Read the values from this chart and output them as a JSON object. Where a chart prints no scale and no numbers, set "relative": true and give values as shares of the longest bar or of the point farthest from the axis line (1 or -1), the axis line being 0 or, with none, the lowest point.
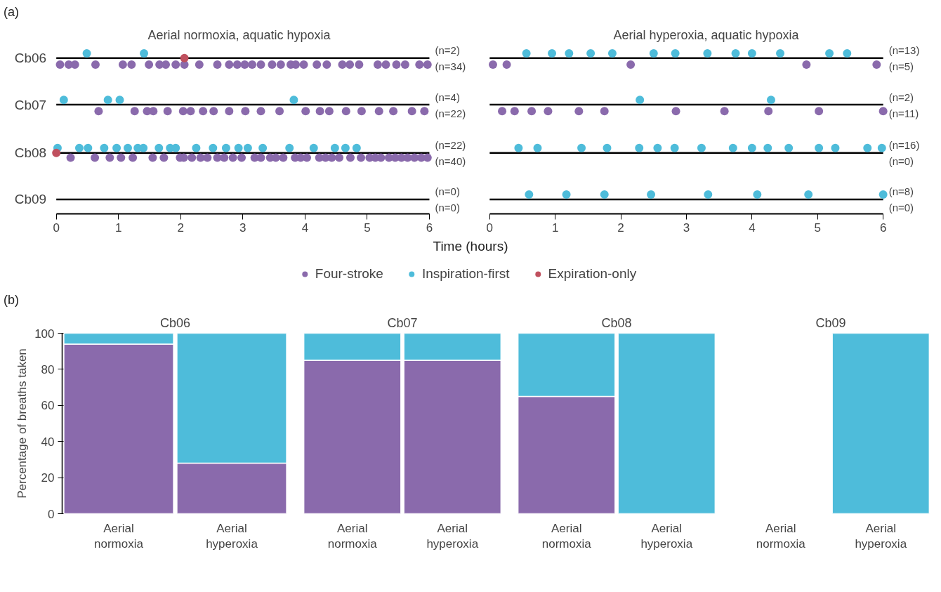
{
  "chart_data": [
    {
      "type": "scatter",
      "relative": true,
      "title": "Aerial normoxia, aquatic hypoxia",
      "xlabel": "Time (hours)",
      "xlim": [
        0,
        6
      ],
      "xticks": [
        0,
        1,
        2,
        3,
        4,
        5,
        6
      ],
      "grid": false,
      "marker": "circle",
      "legend": "bottom",
      "ref_lines": [
        {
          "axis": "y",
          "value": 0.97,
          "label": "Cb06"
        },
        {
          "axis": "y",
          "value": 0.68,
          "label": "Cb07"
        },
        {
          "axis": "y",
          "value": 0.38,
          "label": "Cb08"
        },
        {
          "axis": "y",
          "value": 0.09,
          "label": "Cb09"
        }
      ],
      "annotations": [
        "(a)",
        "(n=2)",
        "(n=34)",
        "(n=4)",
        "(n=22)",
        "(n=22)",
        "(n=40)",
        "(n=0)",
        "(n=0)"
      ],
      "series": [
        {
          "name": "Four-stroke",
          "color": "#8a6aac",
          "x": [
            0.06,
            0.2,
            0.3,
            0.63,
            1.07,
            1.21,
            1.49,
            1.66,
            1.76,
            1.92,
            2.06,
            2.3,
            2.59,
            2.78,
            2.91,
            3.03,
            3.15,
            3.29,
            3.47,
            3.61,
            3.77,
            3.85,
            3.98,
            4.19,
            4.35,
            4.6,
            4.72,
            4.87,
            5.17,
            5.3,
            5.47,
            5.61,
            5.84,
            5.97,
            0.68,
            1.26,
            1.46,
            1.56,
            1.79,
            2.04,
            2.16,
            2.36,
            2.53,
            2.78,
            3.04,
            3.29,
            3.59,
            4.01,
            4.24,
            4.39,
            4.66,
            4.91,
            5.19,
            5.42,
            5.72,
            5.92,
            0.23,
            0.62,
            0.86,
            1.04,
            1.23,
            1.55,
            1.73,
            1.99,
            2.05,
            2.18,
            2.32,
            2.43,
            2.59,
            2.7,
            2.84,
            2.98,
            3.19,
            3.29,
            3.44,
            3.53,
            3.65,
            3.84,
            3.93,
            4.03,
            4.23,
            4.33,
            4.43,
            4.55,
            4.73,
            4.9,
            5.04,
            5.13,
            5.22,
            5.35,
            5.45,
            5.55,
            5.65,
            5.76,
            5.87,
            5.97
          ],
          "values": [
            0.93,
            0.93,
            0.93,
            0.93,
            0.93,
            0.93,
            0.93,
            0.93,
            0.93,
            0.93,
            0.93,
            0.93,
            0.93,
            0.93,
            0.93,
            0.93,
            0.93,
            0.93,
            0.93,
            0.93,
            0.93,
            0.93,
            0.93,
            0.93,
            0.93,
            0.93,
            0.93,
            0.93,
            0.93,
            0.93,
            0.93,
            0.93,
            0.93,
            0.93,
            0.64,
            0.64,
            0.64,
            0.64,
            0.64,
            0.64,
            0.64,
            0.64,
            0.64,
            0.64,
            0.64,
            0.64,
            0.64,
            0.64,
            0.64,
            0.64,
            0.64,
            0.64,
            0.64,
            0.64,
            0.64,
            0.64,
            0.35,
            0.35,
            0.35,
            0.35,
            0.35,
            0.35,
            0.35,
            0.35,
            0.35,
            0.35,
            0.35,
            0.35,
            0.35,
            0.35,
            0.35,
            0.35,
            0.35,
            0.35,
            0.35,
            0.35,
            0.35,
            0.35,
            0.35,
            0.35,
            0.35,
            0.35,
            0.35,
            0.35,
            0.35,
            0.35,
            0.35,
            0.35,
            0.35,
            0.35,
            0.35,
            0.35,
            0.35,
            0.35,
            0.35,
            0.35
          ]
        },
        {
          "name": "Inspiration-first",
          "color": "#4ebcda",
          "x": [
            0.49,
            1.41,
            0.12,
            0.83,
            1.02,
            3.82,
            0.02,
            0.37,
            0.51,
            0.77,
            0.97,
            1.15,
            1.31,
            1.4,
            1.65,
            1.83,
            1.92,
            2.25,
            2.52,
            2.73,
            2.93,
            3.08,
            3.32,
            3.75,
            4.14,
            4.48,
            4.65,
            4.83
          ],
          "values": [
            1,
            1,
            0.71,
            0.71,
            0.71,
            0.71,
            0.41,
            0.41,
            0.41,
            0.41,
            0.41,
            0.41,
            0.41,
            0.41,
            0.41,
            0.41,
            0.41,
            0.41,
            0.41,
            0.41,
            0.41,
            0.41,
            0.41,
            0.41,
            0.41,
            0.41,
            0.41,
            0.41
          ]
        },
        {
          "name": "Expiration-only",
          "color": "#c0505e",
          "x": [
            2.06,
            0
          ],
          "values": [
            0.97,
            0.38
          ]
        }
      ]
    },
    {
      "type": "scatter",
      "relative": true,
      "title": "Aerial hyperoxia, aquatic hypoxia",
      "xlim": [
        0,
        6
      ],
      "xticks": [
        0,
        1,
        2,
        3,
        4,
        5,
        6
      ],
      "grid": false,
      "marker": "circle",
      "ref_lines": [
        {
          "axis": "y",
          "value": 0.97
        },
        {
          "axis": "y",
          "value": 0.68
        },
        {
          "axis": "y",
          "value": 0.38
        },
        {
          "axis": "y",
          "value": 0.09
        }
      ],
      "annotations": [
        "(n=13)",
        "(n=5)",
        "(n=2)",
        "(n=11)",
        "(n=16)",
        "(n=0)",
        "(n=8)",
        "(n=0)"
      ],
      "series": [
        {
          "color": "#8a6aac",
          "x": [
            0.05,
            0.26,
            2.15,
            4.83,
            5.9,
            0.19,
            0.38,
            0.64,
            0.89,
            1.36,
            1.75,
            2.84,
            3.58,
            4.25,
            5.02,
            6.0
          ],
          "values": [
            0.93,
            0.93,
            0.93,
            0.93,
            0.93,
            0.64,
            0.64,
            0.64,
            0.64,
            0.64,
            0.64,
            0.64,
            0.64,
            0.64,
            0.64,
            0.64
          ]
        },
        {
          "color": "#4ebcda",
          "x": [
            0.56,
            0.95,
            1.21,
            1.54,
            1.87,
            2.5,
            2.83,
            3.32,
            3.75,
            4.0,
            4.43,
            5.18,
            5.45,
            2.29,
            4.29,
            0.44,
            0.73,
            1.4,
            1.79,
            2.28,
            2.56,
            2.82,
            3.23,
            3.71,
            4.0,
            4.24,
            4.56,
            5.02,
            5.27,
            5.76,
            5.98,
            0.6,
            1.17,
            1.75,
            2.46,
            3.33,
            4.08,
            4.86,
            6.0
          ],
          "values": [
            1,
            1,
            1,
            1,
            1,
            1,
            1,
            1,
            1,
            1,
            1,
            1,
            1,
            0.71,
            0.71,
            0.41,
            0.41,
            0.41,
            0.41,
            0.41,
            0.41,
            0.41,
            0.41,
            0.41,
            0.41,
            0.41,
            0.41,
            0.41,
            0.41,
            0.41,
            0.41,
            0.12,
            0.12,
            0.12,
            0.12,
            0.12,
            0.12,
            0.12,
            0.12
          ]
        }
      ]
    },
    {
      "type": "bar",
      "title": "Cb06",
      "ylabel": "Percentage of breaths taken",
      "categories": [
        "Aerial normoxia",
        "Aerial hyperoxia"
      ],
      "stacked": true,
      "ylim": [
        0,
        100
      ],
      "yticks": [
        0,
        20,
        40,
        60,
        80,
        100
      ],
      "grid": false,
      "annotations": [
        "(b)"
      ],
      "series": [
        {
          "color": "#8a6aac",
          "values": [
            94,
            28
          ]
        },
        {
          "color": "#4ebcda",
          "values": [
            6,
            72
          ]
        }
      ]
    },
    {
      "type": "bar",
      "title": "Cb07",
      "categories": [
        "Aerial normoxia",
        "Aerial hyperoxia"
      ],
      "stacked": true,
      "ylim": [
        0,
        100
      ],
      "yticks": [
        0,
        20,
        40,
        60,
        80,
        100
      ],
      "tick_labels": "x",
      "grid": false,
      "series": [
        {
          "color": "#8a6aac",
          "values": [
            85,
            85
          ]
        },
        {
          "color": "#4ebcda",
          "values": [
            15,
            15
          ]
        }
      ]
    },
    {
      "type": "bar",
      "title": "Cb08",
      "categories": [
        "Aerial normoxia",
        "Aerial hyperoxia"
      ],
      "stacked": true,
      "ylim": [
        0,
        100
      ],
      "yticks": [
        0,
        20,
        40,
        60,
        80,
        100
      ],
      "tick_labels": "x",
      "grid": false,
      "series": [
        {
          "color": "#8a6aac",
          "values": [
            65,
            0
          ]
        },
        {
          "color": "#4ebcda",
          "values": [
            35,
            100
          ]
        }
      ]
    },
    {
      "type": "bar",
      "title": "Cb09",
      "categories": [
        "Aerial normoxia",
        "Aerial hyperoxia"
      ],
      "stacked": true,
      "ylim": [
        0,
        100
      ],
      "yticks": [
        0,
        20,
        40,
        60,
        80,
        100
      ],
      "tick_labels": "x",
      "grid": false,
      "series": [
        {
          "color": "#8a6aac",
          "values": [
            null,
            0
          ]
        },
        {
          "color": "#4ebcda",
          "values": [
            null,
            100
          ]
        }
      ]
    }
  ]
}
